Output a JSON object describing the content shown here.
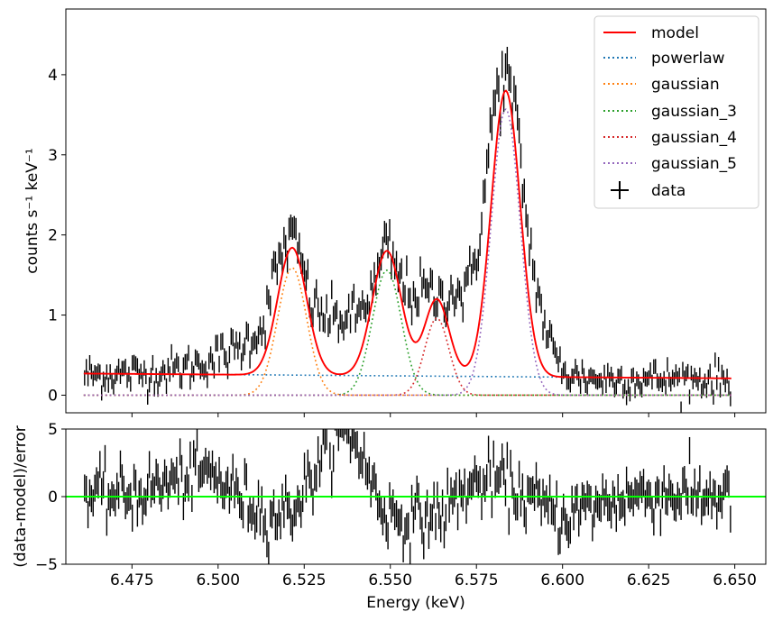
{
  "chart_data": [
    {
      "panel": "spectrum",
      "type": "line",
      "title": "",
      "xlabel": "",
      "ylabel": "counts s⁻¹ keV⁻¹",
      "xlim": [
        6.4558,
        6.659
      ],
      "ylim": [
        -0.22,
        4.82
      ],
      "xticks": [
        6.475,
        6.5,
        6.525,
        6.55,
        6.575,
        6.6,
        6.625,
        6.65
      ],
      "yticks": [
        0,
        1,
        2,
        3,
        4
      ],
      "ytick_labels": [
        "0",
        "1",
        "2",
        "3",
        "4"
      ],
      "grid": false,
      "legend_position": "upper right",
      "series": [
        {
          "name": "model",
          "style": "solid",
          "color": "#ff0000"
        },
        {
          "name": "powerlaw",
          "style": "dotted",
          "color": "#1f77b4"
        },
        {
          "name": "gaussian",
          "style": "dotted",
          "color": "#ff7f0e"
        },
        {
          "name": "gaussian_3",
          "style": "dotted",
          "color": "#2ca02c"
        },
        {
          "name": "gaussian_4",
          "style": "dotted",
          "color": "#d62728"
        },
        {
          "name": "gaussian_5",
          "style": "dotted",
          "color": "#9467bd"
        },
        {
          "name": "data",
          "style": "errorbar",
          "color": "#000000"
        }
      ],
      "components": {
        "x_range": [
          6.461,
          6.649
        ],
        "powerlaw": {
          "start": 0.27,
          "end": 0.21
        },
        "gaussians": [
          {
            "series": "gaussian",
            "center": 6.5215,
            "amplitude": 1.59,
            "sigma": 0.0042
          },
          {
            "series": "gaussian_3",
            "center": 6.549,
            "amplitude": 1.56,
            "sigma": 0.0042
          },
          {
            "series": "gaussian_4",
            "center": 6.5635,
            "amplitude": 0.96,
            "sigma": 0.0035
          },
          {
            "series": "gaussian_5",
            "center": 6.5835,
            "amplitude": 3.57,
            "sigma": 0.0042
          }
        ]
      },
      "data_profile": {
        "x": [
          6.461,
          6.48,
          6.49,
          6.495,
          6.505,
          6.513,
          6.517,
          6.521,
          6.524,
          6.527,
          6.53,
          6.535,
          6.54,
          6.545,
          6.549,
          6.552,
          6.556,
          6.56,
          6.564,
          6.568,
          6.572,
          6.576,
          6.58,
          6.5835,
          6.587,
          6.59,
          6.594,
          6.598,
          6.602,
          6.61,
          6.649
        ],
        "y": [
          0.25,
          0.27,
          0.33,
          0.4,
          0.55,
          0.85,
          1.6,
          2.0,
          1.7,
          1.15,
          1.0,
          0.95,
          0.98,
          1.3,
          1.9,
          1.5,
          1.25,
          1.3,
          1.2,
          1.3,
          1.25,
          2.0,
          3.6,
          4.05,
          3.3,
          2.0,
          1.0,
          0.45,
          0.25,
          0.2,
          0.2
        ],
        "error": 0.1
      }
    },
    {
      "panel": "residuals",
      "type": "line",
      "title": "",
      "xlabel": "Energy (keV)",
      "ylabel": "(data-model)/error",
      "xlim": [
        6.4558,
        6.659
      ],
      "ylim": [
        -5,
        5
      ],
      "xticks": [
        6.475,
        6.5,
        6.525,
        6.55,
        6.575,
        6.6,
        6.625,
        6.65
      ],
      "xtick_labels": [
        "6.475",
        "6.500",
        "6.525",
        "6.550",
        "6.575",
        "6.600",
        "6.625",
        "6.650"
      ],
      "yticks": [
        -5,
        0,
        5
      ],
      "ytick_labels": [
        "−5",
        "0",
        "5"
      ],
      "grid": false,
      "zero_line_color": "#00ff00",
      "residual_profile": {
        "x": [
          6.461,
          6.475,
          6.49,
          6.497,
          6.505,
          6.515,
          6.522,
          6.528,
          6.533,
          6.537,
          6.54,
          6.543,
          6.548,
          6.555,
          6.565,
          6.572,
          6.58,
          6.587,
          6.595,
          6.6,
          6.61,
          6.62,
          6.63,
          6.649
        ],
        "y": [
          0.0,
          0.2,
          1.3,
          1.8,
          0.3,
          -1.5,
          -0.8,
          1.8,
          4.3,
          4.8,
          4.2,
          2.0,
          -1.0,
          -1.8,
          -1.2,
          0.6,
          1.3,
          0.4,
          -0.8,
          -1.5,
          -0.6,
          0.1,
          0.2,
          0.0
        ],
        "error": 1
      }
    }
  ]
}
